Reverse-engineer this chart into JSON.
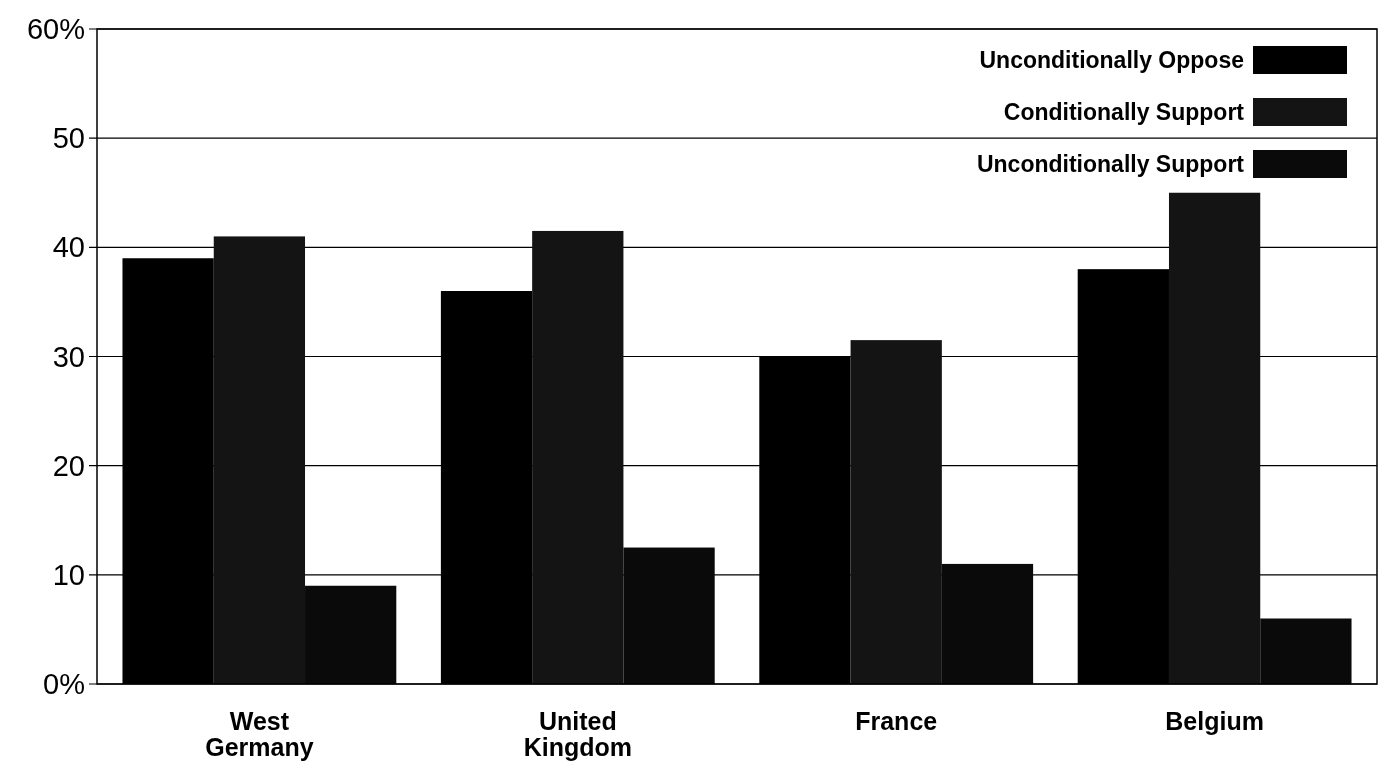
{
  "chart_data": {
    "type": "bar",
    "categories": [
      "West Germany",
      "United Kingdom",
      "France",
      "Belgium"
    ],
    "series": [
      {
        "name": "Unconditionally Oppose",
        "color": "#000000",
        "values": [
          39,
          36,
          30,
          38
        ]
      },
      {
        "name": "Conditionally Support",
        "color": "#141414",
        "values": [
          41,
          41.5,
          31.5,
          45
        ]
      },
      {
        "name": "Unconditionally Support",
        "color": "#0a0a0a",
        "values": [
          9,
          12.5,
          11,
          6
        ]
      }
    ],
    "ylim": [
      0,
      60
    ],
    "yticks": [
      {
        "value": 0,
        "label": "0%"
      },
      10,
      20,
      30,
      40,
      50,
      {
        "value": 60,
        "label": "60%"
      }
    ],
    "grid": "y",
    "legend": "top right"
  }
}
